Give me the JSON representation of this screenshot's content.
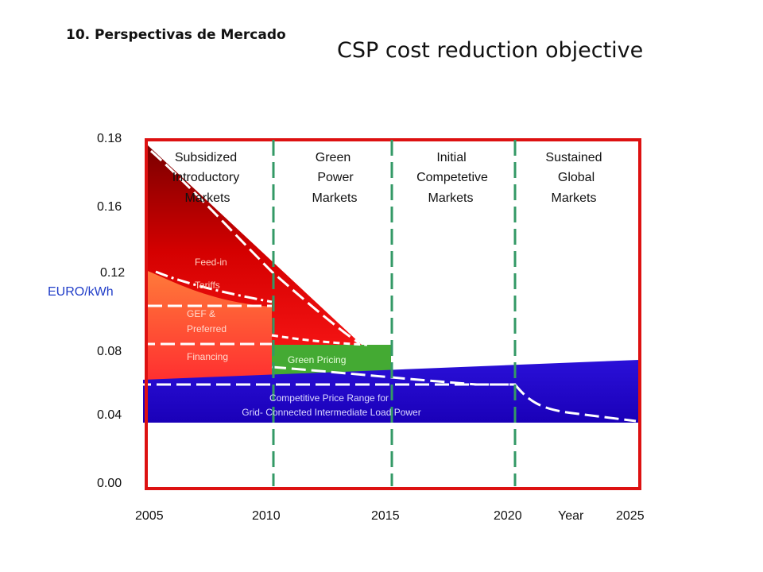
{
  "header": {
    "section_title": "10. Perspectivas de  Mercado",
    "title": "CSP cost reduction objective"
  },
  "chart_data": {
    "type": "area",
    "title": "CSP cost reduction objective",
    "xlabel": "Year",
    "ylabel": "EURO/kWh",
    "y_ticks": [
      "0.18",
      "0.16",
      "0.12",
      "0.08",
      "0.04",
      "0.00"
    ],
    "x_ticks": [
      "2005",
      "2010",
      "2015",
      "2020",
      "2025"
    ],
    "xlim": [
      2005,
      2025
    ],
    "grid": false,
    "phases": [
      {
        "label": [
          "Subsidized",
          "Introductory",
          "Markets"
        ],
        "start": 2005,
        "end": 2010
      },
      {
        "label": [
          "Green",
          "Power",
          "Markets"
        ],
        "start": 2010,
        "end": 2015
      },
      {
        "label": [
          "Initial",
          "Competetive",
          "Markets"
        ],
        "start": 2015,
        "end": 2020
      },
      {
        "label": [
          "Sustained",
          "Global",
          "Markets"
        ],
        "start": 2020,
        "end": 2025
      }
    ],
    "phase_boundaries": [
      2010,
      2015,
      2020
    ],
    "regions": [
      {
        "name": "Feed-in Tariffs",
        "labels": [
          "Feed-in",
          "Tariffs"
        ],
        "color": "#cc0000",
        "x": [
          2005,
          2014.2
        ],
        "y_top": [
          0.18,
          0.08
        ]
      },
      {
        "name": "GEF & Preferred Financing",
        "labels": [
          "GEF &",
          "Preferred",
          "Financing"
        ],
        "color": "#ff5533",
        "x": [
          2005,
          2010
        ],
        "y_top": [
          0.12,
          0.095
        ]
      },
      {
        "name": "Green Pricing",
        "labels": [
          "Green Pricing"
        ],
        "color": "#44aa33",
        "x": [
          2010,
          2015
        ],
        "y_top": [
          0.09,
          0.08
        ]
      },
      {
        "name": "Competitive Price Range for Grid- Connected Intermediate Load Power",
        "labels": [
          "Competitive Price Range for",
          "Grid- Connected Intermediate Load Power"
        ],
        "color": "#2200cc",
        "x": [
          2005,
          2025
        ],
        "y_top": [
          0.063,
          0.075
        ],
        "y_bottom": [
          0.035,
          0.035
        ]
      }
    ],
    "cost_curve": {
      "x": [
        2005,
        2010,
        2014.5,
        2020,
        2021,
        2025
      ],
      "y": [
        0.18,
        0.13,
        0.08,
        0.06,
        0.045,
        0.035
      ]
    },
    "colors": {
      "frame": "#dd1111",
      "phase_line": "#339966",
      "unit": "#1f3cc8"
    }
  }
}
